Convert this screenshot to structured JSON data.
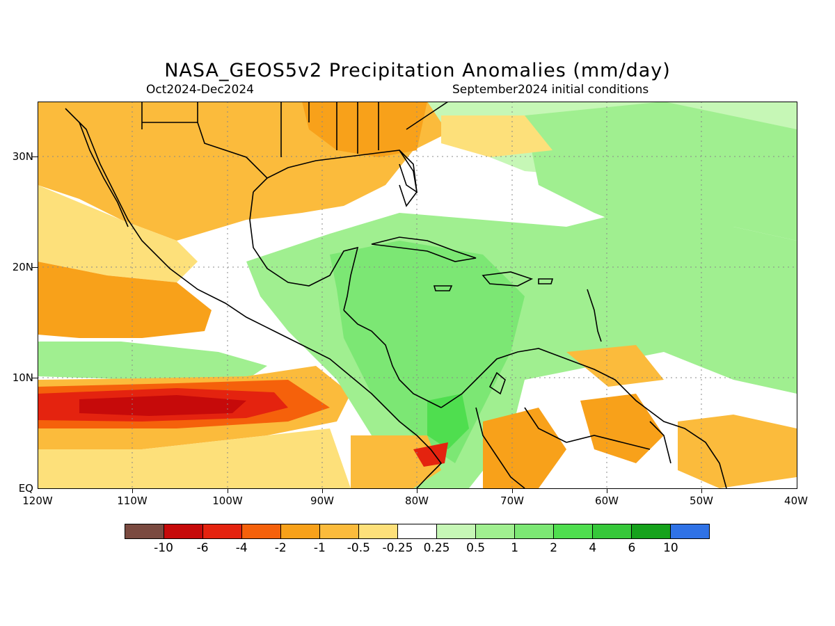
{
  "title": "NASA_GEOS5v2 Precipitation Anomalies (mm/day)",
  "period": "Oct2024-Dec2024",
  "init": "September2024 initial conditions",
  "lat_labels": [
    "30N",
    "20N",
    "10N",
    "EQ"
  ],
  "lon_labels": [
    "120W",
    "110W",
    "100W",
    "90W",
    "80W",
    "70W",
    "60W",
    "50W",
    "40W"
  ],
  "colorbar": {
    "colors": [
      "#7a4a40",
      "#c60a0a",
      "#e4230f",
      "#f5610b",
      "#f8a11a",
      "#fbbb3c",
      "#fde07a",
      "#ffffff",
      "#c6f7b6",
      "#a0ef90",
      "#7ce774",
      "#4fde4f",
      "#36c83a",
      "#16a21c",
      "#2f72e6"
    ],
    "labels": [
      "-10",
      "-6",
      "-4",
      "-2",
      "-1",
      "-0.5",
      "-0.25",
      "0.25",
      "0.5",
      "1",
      "2",
      "4",
      "6",
      "10"
    ]
  },
  "map_extent": {
    "lon_min": -120,
    "lon_max": -40,
    "lat_min": 0,
    "lat_max": 35
  }
}
